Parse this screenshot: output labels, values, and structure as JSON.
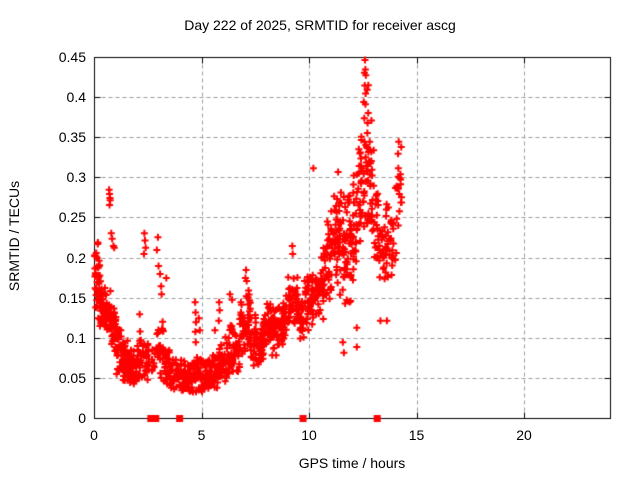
{
  "chart_data": {
    "type": "scatter",
    "title": "Day 222 of 2025, SRMTID for receiver ascg",
    "xlabel": "GPS time / hours",
    "ylabel": "SRMTID / TECUs",
    "xlim": [
      0,
      24
    ],
    "ylim": [
      0,
      0.45
    ],
    "xticks": {
      "values": [
        0,
        5,
        10,
        15,
        20
      ],
      "labels": [
        "0",
        "5",
        "10",
        "15",
        "20"
      ]
    },
    "yticks": {
      "values": [
        0,
        0.05,
        0.1,
        0.15,
        0.2,
        0.25,
        0.3,
        0.35,
        0.4,
        0.45
      ],
      "labels": [
        "0",
        "0.05",
        "0.1",
        "0.15",
        "0.2",
        "0.25",
        "0.3",
        "0.35",
        "0.4",
        "0.45"
      ]
    },
    "grid": "dashed-major",
    "legend": "none",
    "marker": "plus",
    "marker_size_px": 7,
    "marker_color": "#ff0000",
    "grid_color": "#9e9e9e",
    "axis_color": "#000000",
    "background_color": "#ffffff",
    "data_time_span_hours": [
      0,
      14.3
    ],
    "scatter_envelope_bins": [
      [
        0.0,
        0.25,
        0.115,
        0.225,
        40
      ],
      [
        0.25,
        0.5,
        0.1,
        0.18,
        30
      ],
      [
        0.5,
        0.75,
        0.09,
        0.165,
        26
      ],
      [
        0.75,
        1.0,
        0.08,
        0.155,
        26
      ],
      [
        1.0,
        1.25,
        0.05,
        0.125,
        32
      ],
      [
        1.25,
        1.5,
        0.04,
        0.105,
        30
      ],
      [
        1.5,
        1.75,
        0.04,
        0.1,
        28
      ],
      [
        1.75,
        2.0,
        0.04,
        0.09,
        26
      ],
      [
        2.0,
        2.25,
        0.045,
        0.11,
        24
      ],
      [
        2.25,
        2.5,
        0.04,
        0.1,
        20
      ],
      [
        2.5,
        2.75,
        0.045,
        0.09,
        10
      ],
      [
        2.75,
        3.0,
        0.05,
        0.12,
        16
      ],
      [
        3.0,
        3.25,
        0.04,
        0.135,
        22
      ],
      [
        3.25,
        3.5,
        0.035,
        0.095,
        22
      ],
      [
        3.5,
        3.75,
        0.03,
        0.085,
        24
      ],
      [
        3.75,
        4.0,
        0.03,
        0.075,
        20
      ],
      [
        4.0,
        4.25,
        0.028,
        0.075,
        26
      ],
      [
        4.25,
        4.5,
        0.025,
        0.07,
        26
      ],
      [
        4.5,
        4.75,
        0.03,
        0.08,
        24
      ],
      [
        4.75,
        5.0,
        0.03,
        0.085,
        24
      ],
      [
        5.0,
        5.25,
        0.03,
        0.08,
        24
      ],
      [
        5.25,
        5.5,
        0.03,
        0.078,
        24
      ],
      [
        5.5,
        5.75,
        0.035,
        0.085,
        24
      ],
      [
        5.75,
        6.0,
        0.035,
        0.1,
        24
      ],
      [
        6.0,
        6.25,
        0.04,
        0.11,
        24
      ],
      [
        6.25,
        6.5,
        0.05,
        0.13,
        24
      ],
      [
        6.5,
        6.75,
        0.05,
        0.12,
        22
      ],
      [
        6.75,
        7.0,
        0.06,
        0.15,
        24
      ],
      [
        7.0,
        7.25,
        0.07,
        0.185,
        26
      ],
      [
        7.25,
        7.5,
        0.06,
        0.135,
        24
      ],
      [
        7.5,
        7.75,
        0.06,
        0.12,
        22
      ],
      [
        7.75,
        8.0,
        0.07,
        0.14,
        24
      ],
      [
        8.0,
        8.25,
        0.08,
        0.15,
        24
      ],
      [
        8.25,
        8.5,
        0.07,
        0.14,
        24
      ],
      [
        8.5,
        8.75,
        0.08,
        0.15,
        24
      ],
      [
        8.75,
        9.0,
        0.09,
        0.16,
        24
      ],
      [
        9.0,
        9.25,
        0.1,
        0.2,
        26
      ],
      [
        9.25,
        9.5,
        0.1,
        0.19,
        24
      ],
      [
        9.5,
        9.75,
        0.09,
        0.16,
        20
      ],
      [
        9.75,
        10.0,
        0.1,
        0.18,
        24
      ],
      [
        10.0,
        10.25,
        0.11,
        0.2,
        24
      ],
      [
        10.25,
        10.5,
        0.11,
        0.19,
        24
      ],
      [
        10.5,
        10.75,
        0.12,
        0.22,
        24
      ],
      [
        10.75,
        11.0,
        0.13,
        0.29,
        26
      ],
      [
        11.0,
        11.25,
        0.13,
        0.3,
        26
      ],
      [
        11.25,
        11.5,
        0.14,
        0.32,
        28
      ],
      [
        11.5,
        11.75,
        0.12,
        0.3,
        28
      ],
      [
        11.75,
        12.0,
        0.13,
        0.33,
        26
      ],
      [
        12.0,
        12.25,
        0.15,
        0.33,
        26
      ],
      [
        12.25,
        12.5,
        0.18,
        0.38,
        26
      ],
      [
        12.5,
        12.75,
        0.22,
        0.448,
        34
      ],
      [
        12.75,
        13.0,
        0.2,
        0.4,
        24
      ],
      [
        13.0,
        13.25,
        0.17,
        0.3,
        20
      ],
      [
        13.25,
        13.5,
        0.15,
        0.26,
        18
      ],
      [
        13.5,
        13.75,
        0.16,
        0.27,
        18
      ],
      [
        13.75,
        14.0,
        0.17,
        0.28,
        16
      ],
      [
        14.0,
        14.3,
        0.2,
        0.348,
        18
      ]
    ],
    "extra_points": [
      [
        0.68,
        0.285
      ],
      [
        0.7,
        0.28
      ],
      [
        0.72,
        0.275
      ],
      [
        0.7,
        0.266
      ],
      [
        0.73,
        0.272
      ],
      [
        0.78,
        0.231
      ],
      [
        0.82,
        0.224
      ],
      [
        0.88,
        0.215
      ],
      [
        0.92,
        0.213
      ],
      [
        2.1,
        0.13
      ],
      [
        2.32,
        0.231
      ],
      [
        2.35,
        0.222
      ],
      [
        2.38,
        0.213
      ],
      [
        2.3,
        0.205
      ],
      [
        2.95,
        0.226
      ],
      [
        2.9,
        0.21
      ],
      [
        2.98,
        0.19
      ],
      [
        3.05,
        0.18
      ],
      [
        3.1,
        0.165
      ],
      [
        3.12,
        0.155
      ],
      [
        3.34,
        0.175
      ],
      [
        4.68,
        0.145
      ],
      [
        4.7,
        0.132
      ],
      [
        4.72,
        0.12
      ],
      [
        4.69,
        0.108
      ],
      [
        4.71,
        0.095
      ],
      [
        4.85,
        0.125
      ],
      [
        4.9,
        0.11
      ],
      [
        5.6,
        0.11
      ],
      [
        5.8,
        0.145
      ],
      [
        5.82,
        0.135
      ],
      [
        5.78,
        0.122
      ],
      [
        6.3,
        0.155
      ],
      [
        6.4,
        0.148
      ],
      [
        7.05,
        0.185
      ],
      [
        7.02,
        0.175
      ],
      [
        9.2,
        0.215
      ],
      [
        9.22,
        0.205
      ],
      [
        10.18,
        0.312
      ],
      [
        11.55,
        0.095
      ],
      [
        11.6,
        0.082
      ],
      [
        12.2,
        0.113
      ],
      [
        12.2,
        0.089
      ],
      [
        12.58,
        0.447
      ],
      [
        12.6,
        0.435
      ],
      [
        12.62,
        0.428
      ],
      [
        12.57,
        0.415
      ],
      [
        12.61,
        0.405
      ],
      [
        13.3,
        0.122
      ],
      [
        13.6,
        0.122
      ],
      [
        14.15,
        0.345
      ],
      [
        14.12,
        0.33
      ],
      [
        14.18,
        0.3
      ]
    ],
    "axis_gap_markers": {
      "marker": "filled-square",
      "color": "#ff0000",
      "y": 0,
      "x": [
        2.62,
        2.85,
        3.96,
        9.7,
        13.15
      ]
    }
  }
}
